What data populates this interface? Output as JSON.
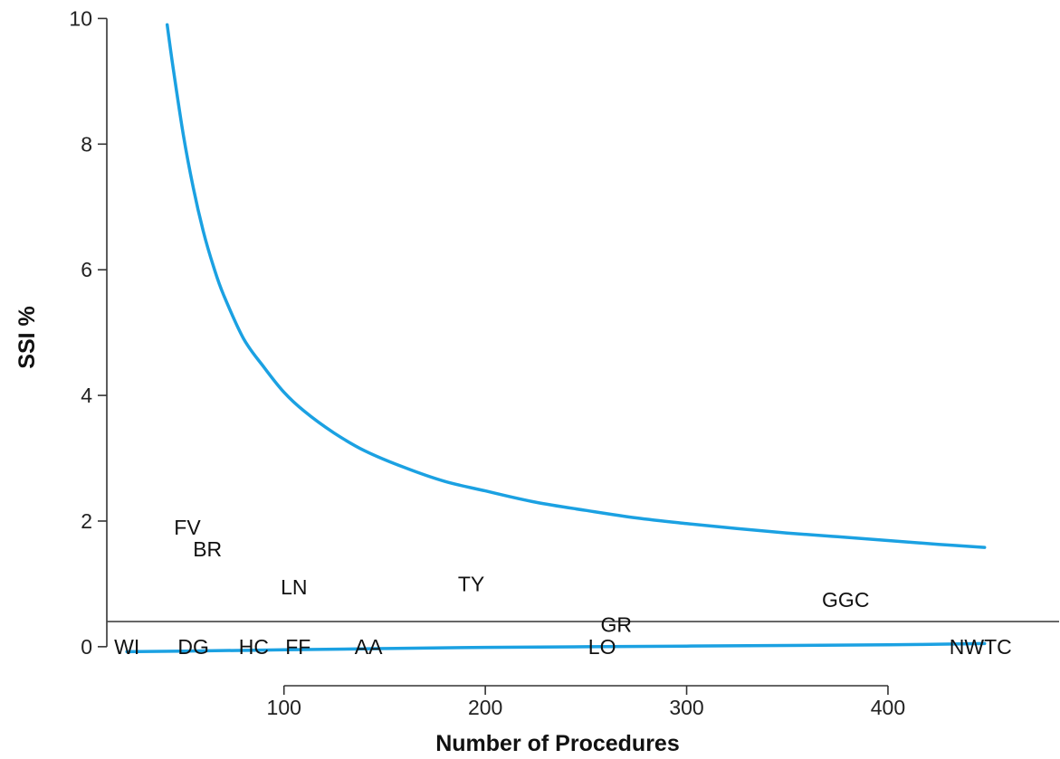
{
  "chart_data": {
    "type": "scatter",
    "title": "",
    "xlabel": "Number of Procedures",
    "ylabel": "SSI %",
    "xlim": [
      12,
      485
    ],
    "ylim": [
      -0.65,
      10.15
    ],
    "xticks": [
      100,
      200,
      300,
      400
    ],
    "yticks": [
      0,
      2,
      4,
      6,
      8,
      10
    ],
    "grid": false,
    "legend": "none",
    "colors": {
      "limit": "#1ba1e2",
      "axis": "#333333",
      "reference": "#444444"
    },
    "reference_line_y": 0.4,
    "points": [
      {
        "label": "WI",
        "x": 22,
        "y": 0.0
      },
      {
        "label": "DG",
        "x": 55,
        "y": 0.0
      },
      {
        "label": "FV",
        "x": 52,
        "y": 1.9
      },
      {
        "label": "BR",
        "x": 62,
        "y": 1.55
      },
      {
        "label": "HC",
        "x": 85,
        "y": 0.0
      },
      {
        "label": "FF",
        "x": 107,
        "y": 0.0
      },
      {
        "label": "LN",
        "x": 105,
        "y": 0.95
      },
      {
        "label": "AA",
        "x": 142,
        "y": 0.0
      },
      {
        "label": "TY",
        "x": 193,
        "y": 1.0
      },
      {
        "label": "GR",
        "x": 265,
        "y": 0.35
      },
      {
        "label": "LO",
        "x": 258,
        "y": 0.0
      },
      {
        "label": "GGC",
        "x": 379,
        "y": 0.75
      },
      {
        "label": "NWTC",
        "x": 446,
        "y": 0.0
      }
    ],
    "upper_limit": {
      "x": [
        42,
        45,
        50,
        55,
        60,
        65,
        70,
        80,
        90,
        100,
        110,
        125,
        140,
        160,
        180,
        200,
        225,
        250,
        275,
        300,
        325,
        350,
        375,
        400,
        425,
        448
      ],
      "y": [
        9.9,
        9.2,
        8.15,
        7.3,
        6.6,
        6.05,
        5.6,
        4.9,
        4.45,
        4.05,
        3.75,
        3.4,
        3.12,
        2.85,
        2.63,
        2.48,
        2.3,
        2.17,
        2.05,
        1.96,
        1.88,
        1.81,
        1.75,
        1.69,
        1.63,
        1.58
      ]
    },
    "lower_limit": {
      "x": [
        22,
        50,
        100,
        150,
        200,
        250,
        300,
        350,
        400,
        448
      ],
      "y": [
        -0.08,
        -0.07,
        -0.05,
        -0.03,
        -0.01,
        0.0,
        0.01,
        0.02,
        0.03,
        0.05
      ]
    }
  }
}
